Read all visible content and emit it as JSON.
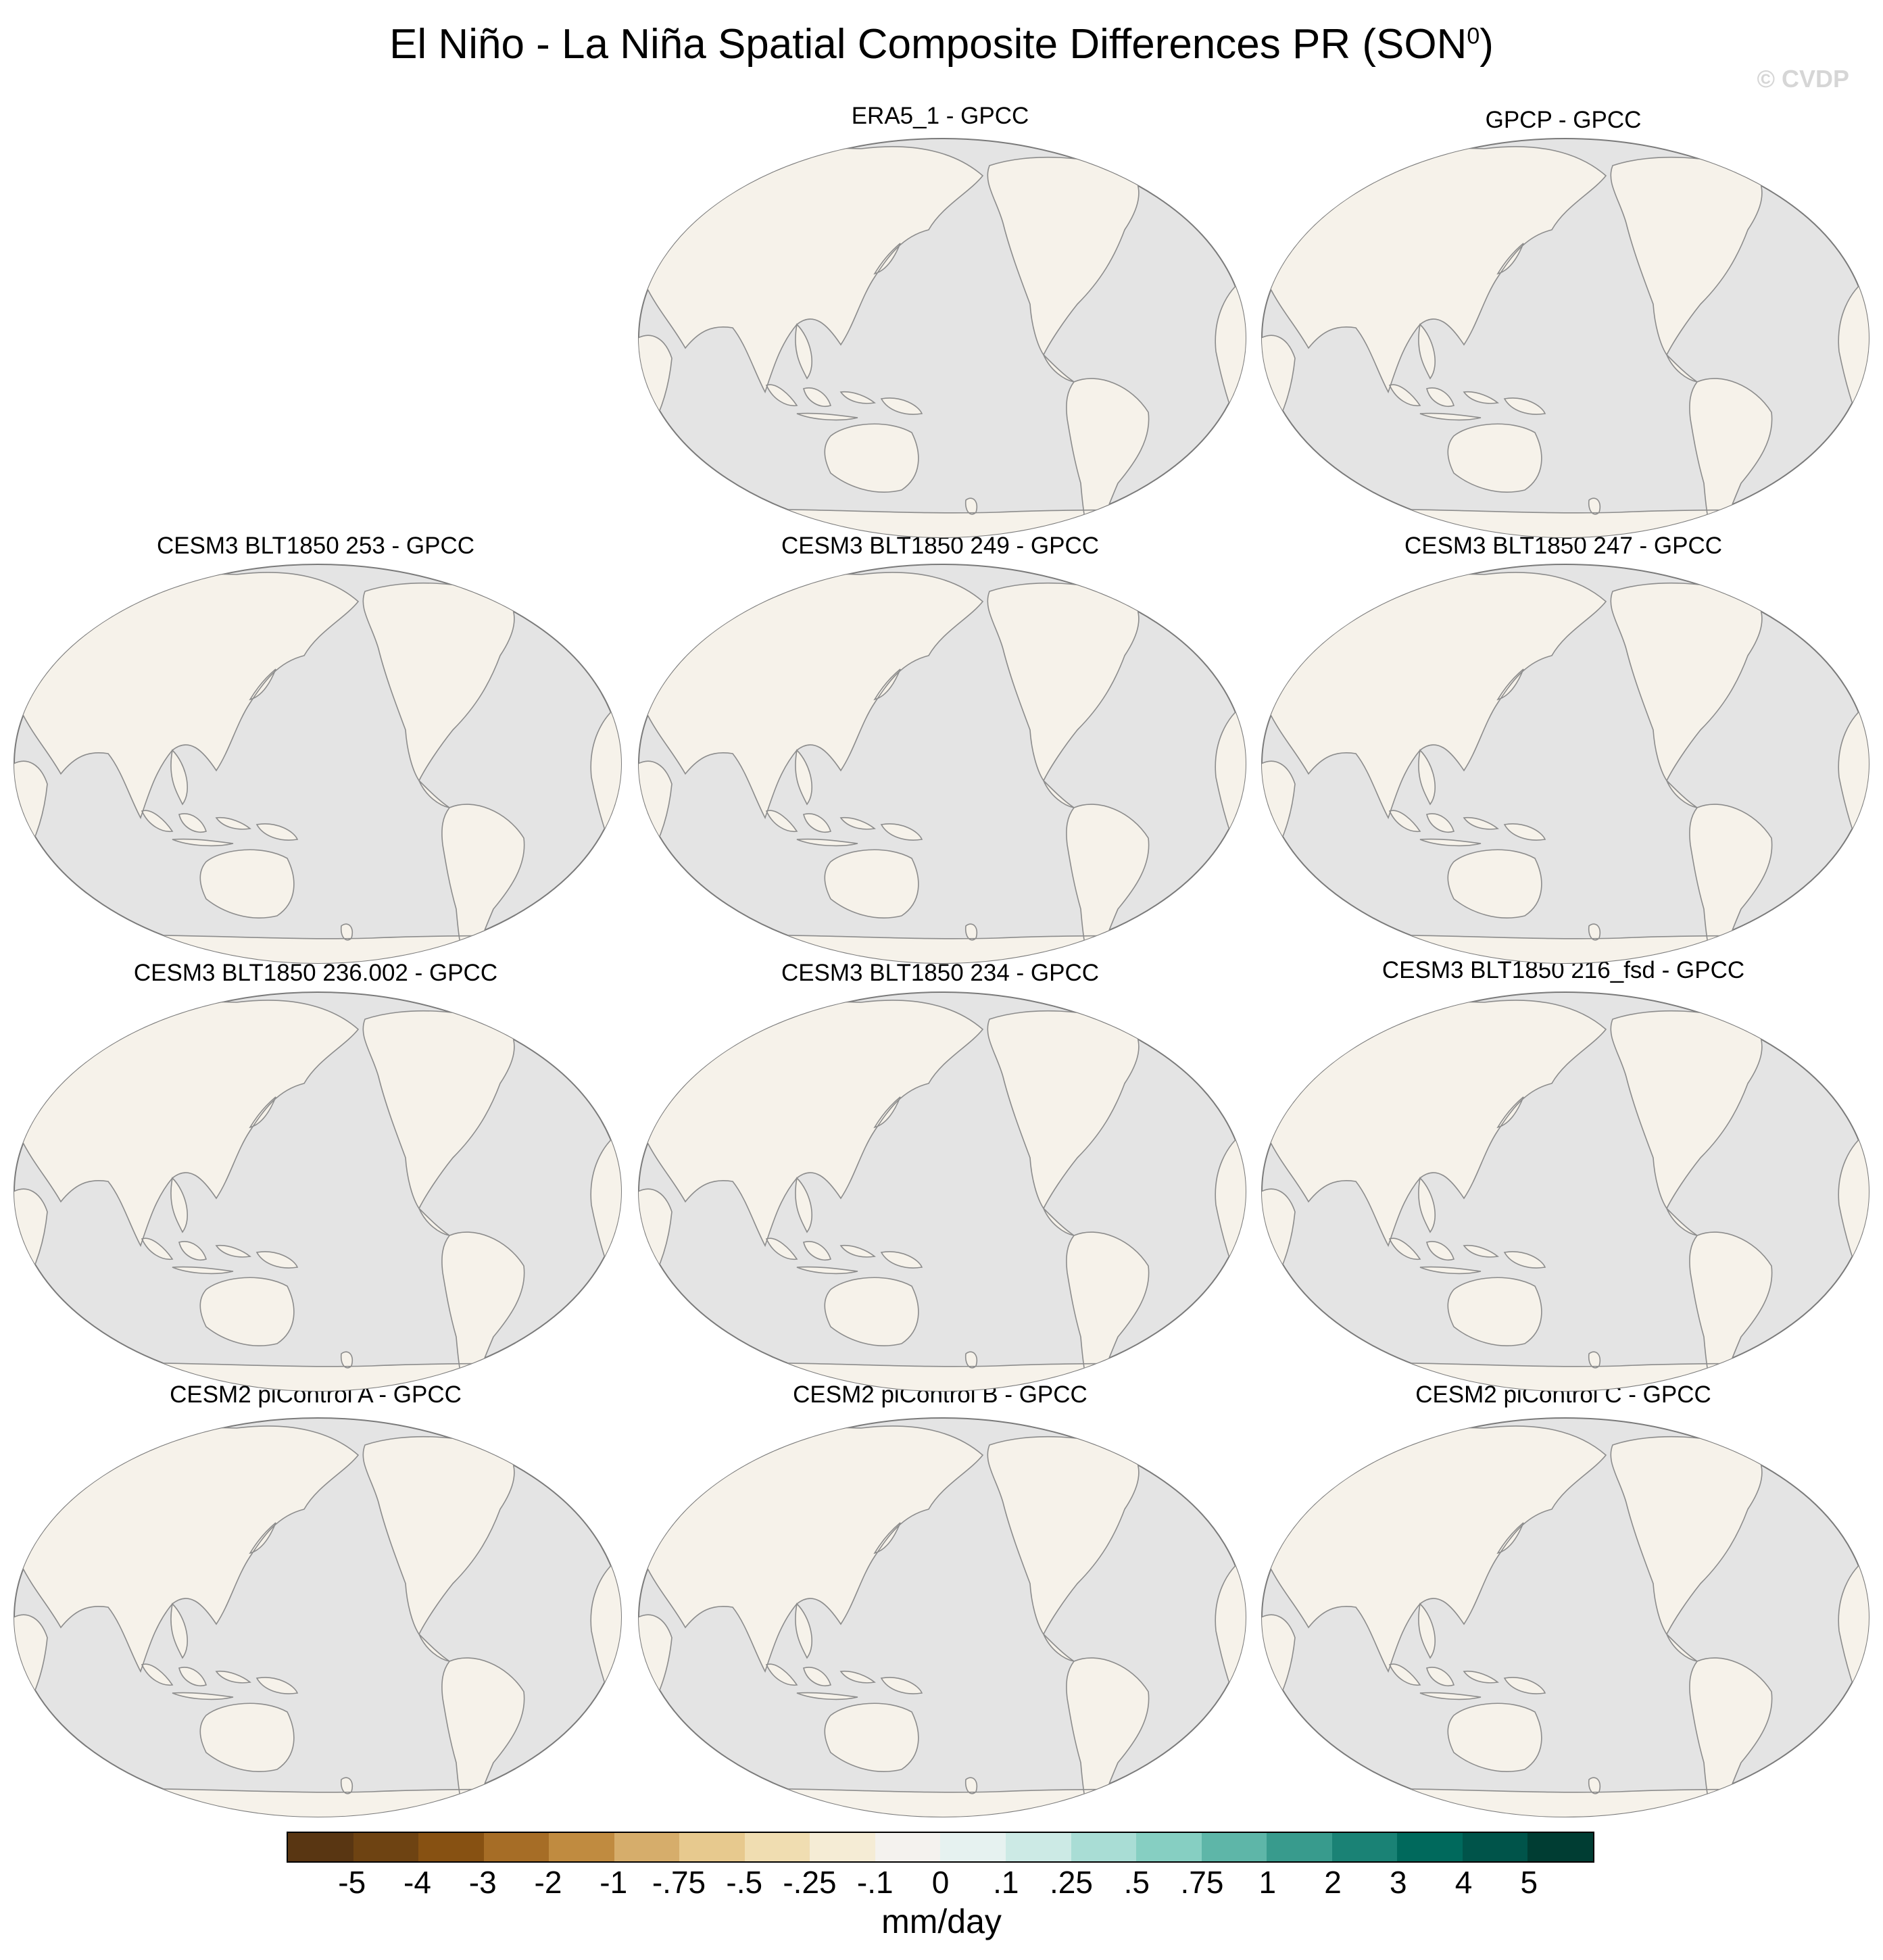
{
  "title": "El Niño - La Niña Spatial Composite Differences PR (SON",
  "title_superscript": "0",
  "title_close": ")",
  "watermark": "© CVDP",
  "panels": [
    {
      "label": "ERA5_1 - GPCC"
    },
    {
      "label": "GPCP - GPCC"
    },
    {
      "label": "CESM3 BLT1850 253 - GPCC"
    },
    {
      "label": "CESM3 BLT1850 249 - GPCC"
    },
    {
      "label": "CESM3 BLT1850 247 - GPCC"
    },
    {
      "label": "CESM3 BLT1850 236.002 - GPCC"
    },
    {
      "label": "CESM3 BLT1850 234 - GPCC"
    },
    {
      "label": "CESM3 BLT1850 216_fsd - GPCC"
    },
    {
      "label": "CESM2 piControl A - GPCC"
    },
    {
      "label": "CESM2 piControl B - GPCC"
    },
    {
      "label": "CESM2 piControl C - GPCC"
    }
  ],
  "map_colors": {
    "ocean": "#e4e4e4",
    "coastline": "#8c8c8c",
    "outline": "#7a7a7a",
    "land_neutral": "#f6f2ea"
  },
  "colorbar": {
    "colors": [
      "#593612",
      "#6e4312",
      "#875112",
      "#a66d26",
      "#c08b40",
      "#d6ad6b",
      "#e7c98e",
      "#f0ddb1",
      "#f5ecd5",
      "#f4f2ee",
      "#e6f2f0",
      "#cceae5",
      "#a9ddd5",
      "#86cfc2",
      "#5eb6a8",
      "#389b8d",
      "#1a8275",
      "#00695c",
      "#00544a",
      "#003d33"
    ],
    "labels": [
      "-5",
      "-4",
      "-3",
      "-2",
      "-1",
      "-.75",
      "-.5",
      "-.25",
      "-.1",
      "0",
      ".1",
      ".25",
      ".5",
      ".75",
      "1",
      "2",
      "3",
      "4",
      "5"
    ],
    "units": "mm/day"
  }
}
